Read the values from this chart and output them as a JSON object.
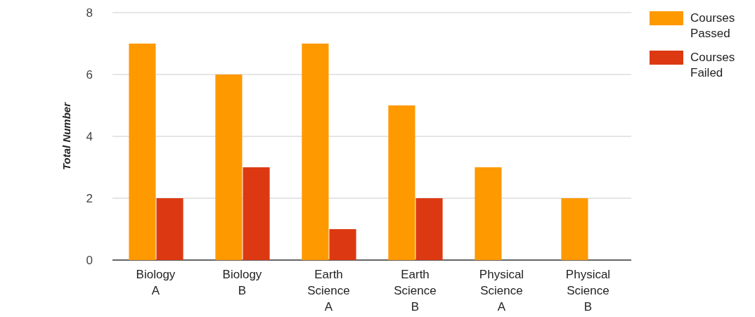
{
  "chart_data": {
    "type": "bar",
    "ylabel": "Total Number",
    "categories": [
      "Biology A",
      "Biology B",
      "Earth Science A",
      "Earth Science B",
      "Physical Science A",
      "Physical Science B"
    ],
    "series": [
      {
        "name": "Courses Passed",
        "color": "#ff9900",
        "values": [
          7,
          6,
          7,
          5,
          3,
          2
        ]
      },
      {
        "name": "Courses Failed",
        "color": "#dc3912",
        "values": [
          2,
          3,
          1,
          2,
          0,
          0
        ]
      }
    ],
    "ylim": [
      0,
      8
    ],
    "yticks": [
      0,
      2,
      4,
      6,
      8
    ],
    "grid": "y",
    "legend": "top right"
  }
}
